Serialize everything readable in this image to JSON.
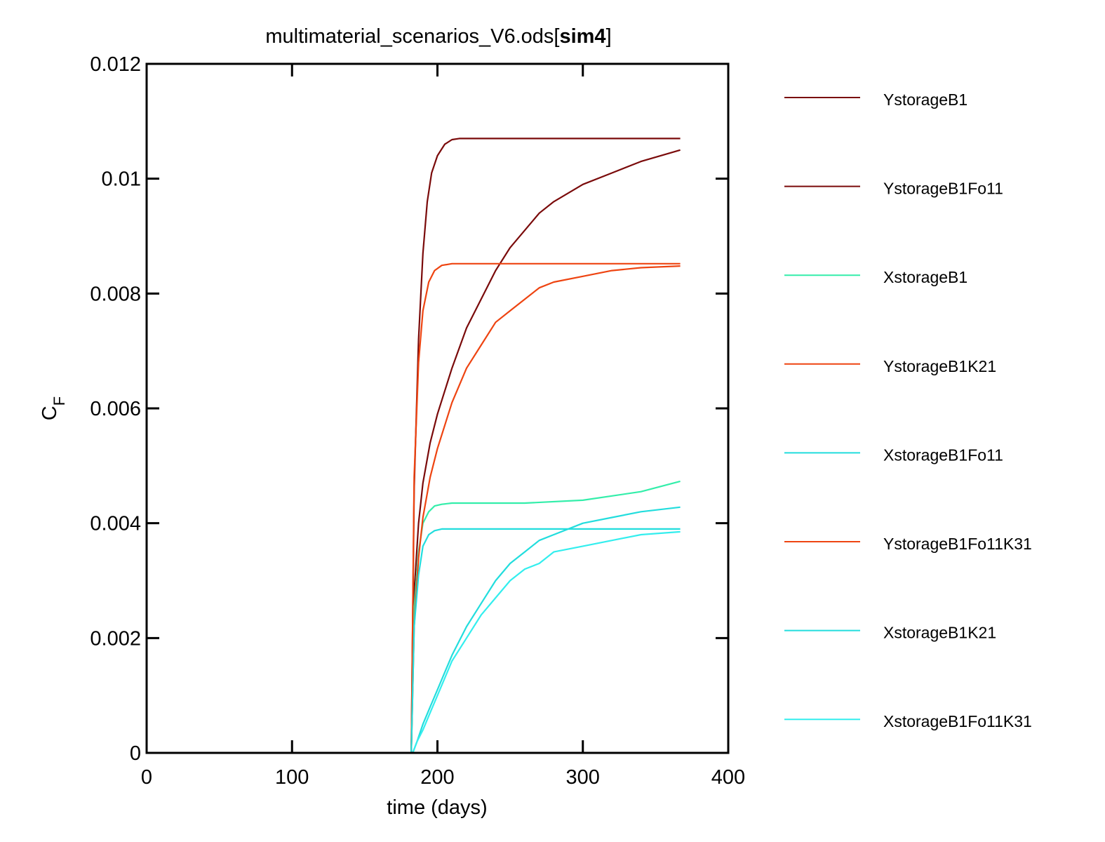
{
  "chart_data": {
    "type": "line",
    "title": "multimaterial_scenarios_V6.ods[",
    "title_bold": "sim4",
    "title_end": "]",
    "xlabel": "time (days)",
    "ylabel_main": "C",
    "ylabel_sub": "F",
    "xlim": [
      0,
      400
    ],
    "ylim": [
      0,
      0.012
    ],
    "x_ticks": [
      0,
      100,
      200,
      300,
      400
    ],
    "x_tick_labels": [
      "0",
      "100",
      "200",
      "300",
      "400"
    ],
    "y_ticks": [
      0,
      0.002,
      0.004,
      0.006,
      0.008,
      0.01,
      0.012
    ],
    "y_tick_labels": [
      "0",
      "0.002",
      "0.004",
      "0.006",
      "0.008",
      "0.01",
      "0.012"
    ],
    "grid": false,
    "legend_position": "right",
    "series": [
      {
        "name": "YstorageB1",
        "color": "#7a0a0a",
        "x": [
          182,
          184,
          187,
          190,
          193,
          196,
          200,
          205,
          210,
          215,
          220,
          240,
          260,
          300,
          340,
          367
        ],
        "y": [
          0,
          0.0046,
          0.0072,
          0.0087,
          0.0096,
          0.0101,
          0.0104,
          0.0106,
          0.01068,
          0.0107,
          0.0107,
          0.0107,
          0.0107,
          0.0107,
          0.0107,
          0.0107
        ]
      },
      {
        "name": "YstorageB1Fo11",
        "color": "#7a0a0a",
        "x": [
          182,
          184,
          187,
          190,
          195,
          200,
          210,
          220,
          230,
          240,
          250,
          260,
          270,
          280,
          300,
          320,
          340,
          367
        ],
        "y": [
          0,
          0.0028,
          0.004,
          0.0047,
          0.0054,
          0.0059,
          0.0067,
          0.0074,
          0.0079,
          0.0084,
          0.0088,
          0.0091,
          0.0094,
          0.0096,
          0.0099,
          0.0101,
          0.0103,
          0.0105
        ]
      },
      {
        "name": "XstorageB1",
        "color": "#33eeaa",
        "x": [
          182,
          184,
          187,
          190,
          194,
          198,
          203,
          210,
          220,
          260,
          300,
          340,
          367
        ],
        "y": [
          0,
          0.0025,
          0.0035,
          0.004,
          0.0042,
          0.0043,
          0.00433,
          0.00435,
          0.00435,
          0.00435,
          0.0044,
          0.00455,
          0.00473
        ]
      },
      {
        "name": "YstorageB1K21",
        "color": "#ee4411",
        "x": [
          182,
          184,
          187,
          190,
          194,
          198,
          203,
          210,
          220,
          260,
          300,
          340,
          367
        ],
        "y": [
          0,
          0.0048,
          0.0068,
          0.0077,
          0.0082,
          0.0084,
          0.00849,
          0.00852,
          0.00852,
          0.00852,
          0.00852,
          0.00852,
          0.00852
        ]
      },
      {
        "name": "XstorageB1Fo11",
        "color": "#22dddd",
        "x": [
          183,
          186,
          190,
          195,
          200,
          210,
          220,
          230,
          240,
          250,
          260,
          270,
          280,
          300,
          320,
          340,
          367
        ],
        "y": [
          0,
          0.0002,
          0.0005,
          0.0008,
          0.0011,
          0.0017,
          0.0022,
          0.0026,
          0.003,
          0.0033,
          0.0035,
          0.0037,
          0.0038,
          0.004,
          0.0041,
          0.0042,
          0.00428
        ]
      },
      {
        "name": "YstorageB1Fo11K31",
        "color": "#ee4411",
        "x": [
          182,
          184,
          187,
          190,
          195,
          200,
          210,
          220,
          230,
          240,
          250,
          260,
          270,
          280,
          300,
          320,
          340,
          367
        ],
        "y": [
          0,
          0.0022,
          0.0034,
          0.0041,
          0.0048,
          0.0053,
          0.0061,
          0.0067,
          0.0071,
          0.0075,
          0.0077,
          0.0079,
          0.0081,
          0.0082,
          0.0083,
          0.0084,
          0.00845,
          0.00848
        ]
      },
      {
        "name": "XstorageB1K21",
        "color": "#22dddd",
        "x": [
          182,
          184,
          187,
          190,
          194,
          198,
          203,
          210,
          220,
          260,
          300,
          340,
          367
        ],
        "y": [
          0,
          0.0022,
          0.0031,
          0.0036,
          0.0038,
          0.00387,
          0.0039,
          0.0039,
          0.0039,
          0.0039,
          0.0039,
          0.0039,
          0.0039
        ]
      },
      {
        "name": "XstorageB1Fo11K31",
        "color": "#33eeee",
        "x": [
          183,
          186,
          190,
          195,
          200,
          210,
          220,
          230,
          240,
          250,
          260,
          270,
          280,
          300,
          320,
          340,
          367
        ],
        "y": [
          0,
          0.0002,
          0.0004,
          0.0007,
          0.001,
          0.0016,
          0.002,
          0.0024,
          0.0027,
          0.003,
          0.0032,
          0.0033,
          0.0035,
          0.0036,
          0.0037,
          0.0038,
          0.00385
        ]
      }
    ]
  }
}
